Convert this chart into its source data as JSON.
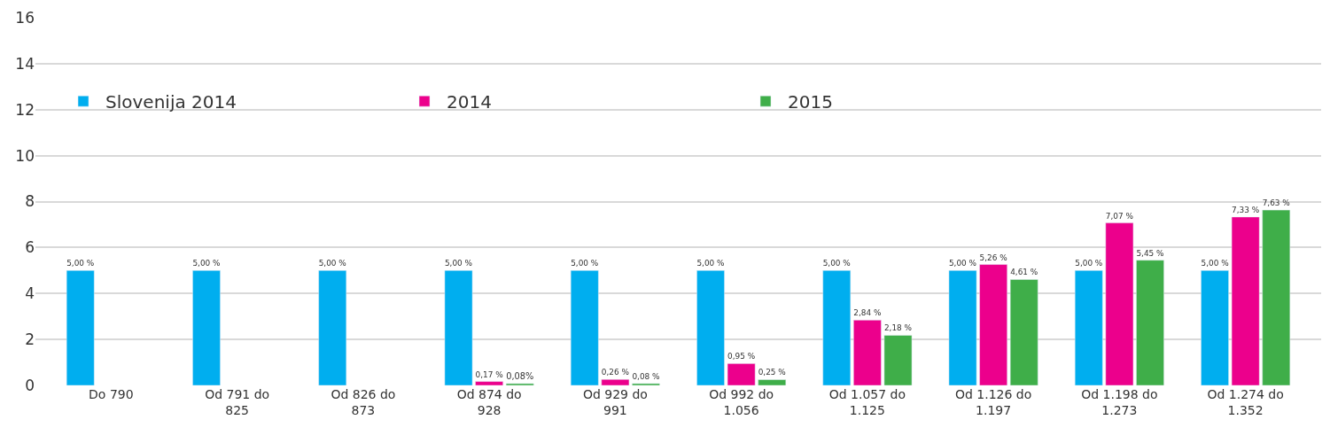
{
  "chart_data": {
    "type": "bar",
    "categories": [
      "Do 790",
      "Od 791 do 825",
      "Od 826 do 873",
      "Od 874 do 928",
      "Od 929 do 991",
      "Od 992 do 1.056",
      "Od 1.057 do 1.125",
      "Od 1.126 do 1.197",
      "Od 1.198 do 1.273",
      "Od 1.274 do 1.352"
    ],
    "series": [
      {
        "name": "Slovenija 2014",
        "color": "#00aeef",
        "values": [
          5,
          5,
          5,
          5,
          5,
          5,
          5,
          5,
          5,
          5
        ],
        "value_labels": [
          "5,00 %",
          "5,00 %",
          "5,00 %",
          "5,00 %",
          "5,00 %",
          "5,00 %",
          "5,00 %",
          "5,00 %",
          "5,00 %",
          "5,00 %"
        ]
      },
      {
        "name": "2014",
        "color": "#ec008c",
        "values": [
          null,
          null,
          null,
          0.17,
          0.26,
          0.95,
          2.84,
          5.26,
          7.07,
          7.33
        ],
        "value_labels": [
          null,
          null,
          null,
          "0,17 %",
          "0,26 %",
          "0,95 %",
          "2,84 %",
          "5,26 %",
          "7,07 %",
          "7,33 %"
        ]
      },
      {
        "name": "2015",
        "color": "#3fae49",
        "values": [
          null,
          null,
          null,
          0.08,
          0.08,
          0.25,
          2.18,
          4.61,
          5.45,
          7.63
        ],
        "value_labels": [
          null,
          null,
          null,
          "0,08%",
          "0,08 %",
          "0,25 %",
          "2,18 %",
          "4,61 %",
          "5,45 %",
          "7,63 %"
        ]
      }
    ],
    "ylim": [
      0,
      16
    ],
    "yticks": [
      0,
      2,
      4,
      6,
      8,
      10,
      12,
      14,
      16
    ],
    "grid": "y",
    "legend": "top left"
  }
}
